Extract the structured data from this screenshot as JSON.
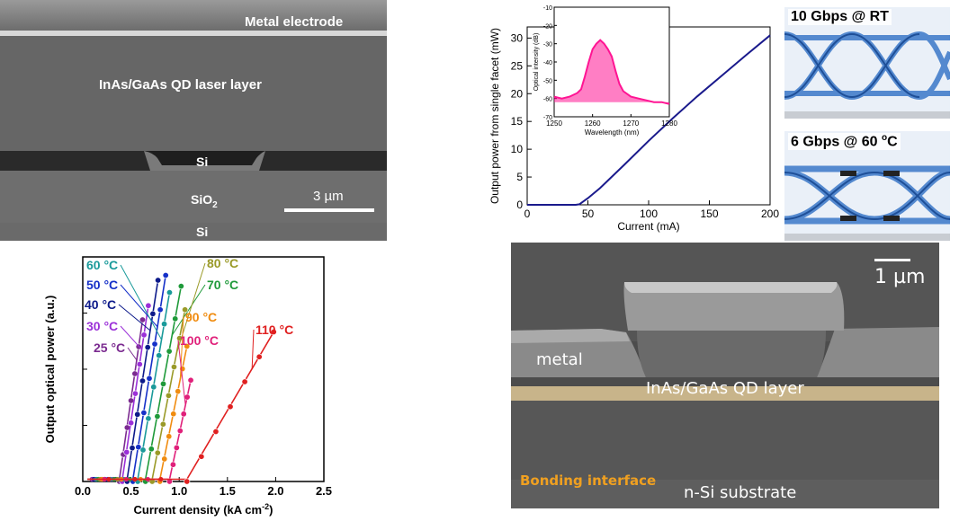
{
  "panels": {
    "sem_top": {
      "labels": {
        "metal_electrode": "Metal electrode",
        "qd_laser_layer": "InAs/GaAs QD laser layer",
        "si_top": "Si",
        "sio2_main": "SiO",
        "sio2_sub": "2",
        "si_bottom": "Si",
        "scale": "3 µm"
      }
    },
    "sem_bottom": {
      "labels": {
        "scale": "1 µm",
        "metal": "metal",
        "qd_layer": "InAs/GaAs QD layer",
        "bonding_interface": "Bonding interface",
        "substrate": "n-Si substrate"
      },
      "colors": {
        "qd_layer": "#c8b48a",
        "bonding_interface": "#f0a020"
      }
    },
    "eye_rt": {
      "title": "10 Gbps @ RT"
    },
    "eye_60": {
      "title_main": "6 Gbps @ 60 ",
      "title_sup": "o",
      "title_unit": "C"
    }
  },
  "chart_data": [
    {
      "type": "line",
      "id": "li_curve",
      "xlabel": "Current (mA)",
      "ylabel": "Output power from single facet (mW)",
      "xlim": [
        0,
        200
      ],
      "ylim": [
        0,
        32
      ],
      "xticks": [
        "0",
        "50",
        "100",
        "150",
        "200"
      ],
      "yticks": [
        "0",
        "5",
        "10",
        "15",
        "20",
        "25",
        "30"
      ],
      "series": [
        {
          "color": "#1a1a8c",
          "x": [
            0,
            20,
            40,
            43,
            50,
            60,
            80,
            100,
            120,
            140,
            160,
            180,
            200
          ],
          "y": [
            0,
            0,
            0,
            0.1,
            1.2,
            3.0,
            7.2,
            11.5,
            15.6,
            19.5,
            23.2,
            26.9,
            30.5
          ]
        }
      ],
      "inset": {
        "type": "line",
        "xlabel": "Wavelength (nm)",
        "ylabel": "Optical intensity (dB)",
        "xlim": [
          1250,
          1280
        ],
        "ylim": [
          -70,
          -10
        ],
        "xticks": [
          "1250",
          "1260",
          "1270",
          "1280"
        ],
        "yticks": [
          "-10",
          "-20",
          "-30",
          "-40",
          "-50",
          "-60",
          "-70"
        ],
        "series": [
          {
            "color": "#ff1493",
            "x": [
              1250,
              1252,
              1254,
              1256,
              1257,
              1258,
              1259,
              1260,
              1261,
              1262,
              1263,
              1264,
              1265,
              1266,
              1267,
              1268,
              1270,
              1272,
              1274,
              1276,
              1278,
              1280
            ],
            "y": [
              -59,
              -60,
              -59,
              -57,
              -55,
              -48,
              -40,
              -33,
              -30,
              -28,
              -30,
              -33,
              -37,
              -45,
              -52,
              -56,
              -59,
              -60,
              -61,
              -62,
              -62,
              -63
            ]
          }
        ]
      }
    },
    {
      "type": "scatter",
      "id": "temp_curves",
      "xlabel": "Current density (kA cm",
      "xlabel_sup": "-2",
      "xlabel_end": ")",
      "ylabel": "Output optical power (a.u.)",
      "xlim": [
        0,
        2.5
      ],
      "ylim": [
        0,
        1
      ],
      "xticks": [
        "0.0",
        "0.5",
        "1.0",
        "1.5",
        "2.0",
        "2.5"
      ],
      "series": [
        {
          "name": "25 °C",
          "color": "#7b2b90",
          "th": 0.38,
          "end": 0.62,
          "slope": 3.0
        },
        {
          "name": "30 °C",
          "color": "#9b30d8",
          "th": 0.41,
          "end": 0.68,
          "slope": 2.9
        },
        {
          "name": "40 °C",
          "color": "#0d1a8a",
          "th": 0.46,
          "end": 0.78,
          "slope": 2.8
        },
        {
          "name": "50 °C",
          "color": "#1530c8",
          "th": 0.52,
          "end": 0.86,
          "slope": 2.7
        },
        {
          "name": "60 °C",
          "color": "#1a9a9a",
          "th": 0.57,
          "end": 0.9,
          "slope": 2.55
        },
        {
          "name": "70 °C",
          "color": "#1f9a3a",
          "th": 0.65,
          "end": 1.02,
          "slope": 2.35
        },
        {
          "name": "80 °C",
          "color": "#9a9a28",
          "th": 0.72,
          "end": 1.06,
          "slope": 2.25
        },
        {
          "name": "90 °C",
          "color": "#f08c10",
          "th": 0.8,
          "end": 1.08,
          "slope": 2.15
        },
        {
          "name": "100 °C",
          "color": "#e0207a",
          "th": 0.9,
          "end": 1.12,
          "slope": 2.05
        },
        {
          "name": "110 °C",
          "color": "#e02020",
          "th": 1.08,
          "end": 1.98,
          "slope": 0.74
        }
      ]
    }
  ]
}
